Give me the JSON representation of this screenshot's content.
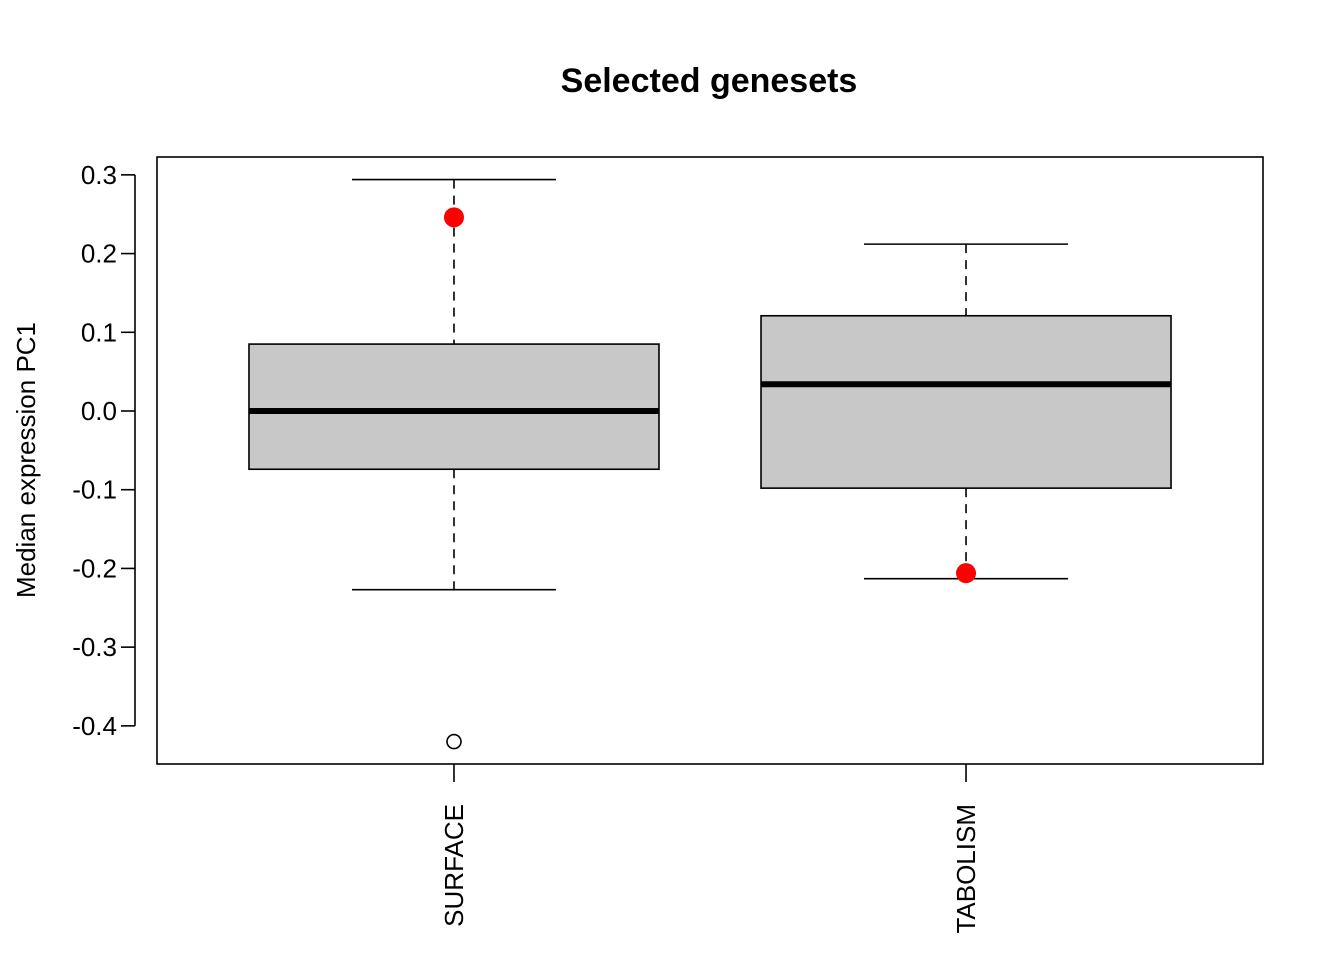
{
  "chart_data": {
    "type": "box",
    "title": "Selected genesets",
    "xlabel": "",
    "ylabel": "Median expression PC1",
    "ylim": [
      -0.45,
      0.322
    ],
    "yticks": [
      0.3,
      0.2,
      0.1,
      0.0,
      -0.1,
      -0.2,
      -0.3,
      -0.4
    ],
    "ytick_labels": [
      "0.3",
      "0.2",
      "0.1",
      "0.0",
      "-0.1",
      "-0.2",
      "-0.3",
      "-0.4"
    ],
    "grid": false,
    "colors": {
      "box_fill": "#c8c8c8",
      "highlight": "#ff0000",
      "line": "#000000"
    },
    "categories": [
      "SURFACE",
      "TABOLISM"
    ],
    "boxes": [
      {
        "label": "SURFACE",
        "whisker_low": -0.227,
        "q1": -0.074,
        "median": 0.0,
        "q3": 0.085,
        "whisker_high": 0.294,
        "outliers": [
          -0.42
        ],
        "highlight": [
          0.246
        ]
      },
      {
        "label": "TABOLISM",
        "whisker_low": -0.213,
        "q1": -0.098,
        "median": 0.034,
        "q3": 0.121,
        "whisker_high": 0.212,
        "outliers": [],
        "highlight": [
          -0.206
        ]
      }
    ]
  }
}
